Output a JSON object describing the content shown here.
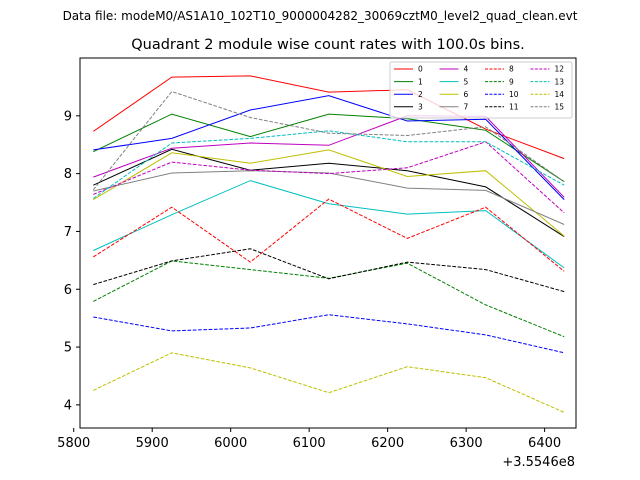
{
  "chart_data": {
    "type": "line",
    "suptitle": "Data file: modeM0/AS1A10_102T10_9000004282_30069cztM0_level2_quad_clean.evt",
    "title": "Quadrant 2 module wise count rates with 100.0s bins.",
    "xlabel": "",
    "ylabel": "",
    "x_offset_label": "+3.5546e8",
    "x": [
      5825,
      5925,
      6025,
      6125,
      6225,
      6325,
      6425
    ],
    "xlim": [
      5808,
      6440
    ],
    "ylim": [
      3.6,
      10.0
    ],
    "xticks": [
      5800,
      5900,
      6000,
      6100,
      6200,
      6300,
      6400
    ],
    "xtick_labels": [
      "5800",
      "5900",
      "6000",
      "6100",
      "6200",
      "6300",
      "6400"
    ],
    "yticks": [
      4,
      5,
      6,
      7,
      8,
      9
    ],
    "ytick_labels": [
      "4",
      "5",
      "6",
      "7",
      "8",
      "9"
    ],
    "grid": false,
    "legend_position": "top-right",
    "series": [
      {
        "name": "0",
        "color": "#ff0000",
        "dash": "solid",
        "values": [
          8.73,
          9.67,
          9.69,
          9.41,
          9.45,
          8.77,
          8.26
        ]
      },
      {
        "name": "1",
        "color": "#008000",
        "dash": "solid",
        "values": [
          8.38,
          9.03,
          8.64,
          9.03,
          8.95,
          8.75,
          7.86
        ]
      },
      {
        "name": "2",
        "color": "#0000ff",
        "dash": "solid",
        "values": [
          8.41,
          8.61,
          9.1,
          9.35,
          8.91,
          8.94,
          7.55
        ]
      },
      {
        "name": "3",
        "color": "#000000",
        "dash": "solid",
        "values": [
          7.8,
          8.42,
          8.06,
          8.18,
          8.05,
          7.77,
          6.91
        ]
      },
      {
        "name": "4",
        "color": "#bf00bf",
        "dash": "solid",
        "values": [
          7.94,
          8.44,
          8.53,
          8.49,
          9.0,
          8.99,
          7.59
        ]
      },
      {
        "name": "5",
        "color": "#00bfbf",
        "dash": "solid",
        "values": [
          6.67,
          7.29,
          7.88,
          7.48,
          7.3,
          7.36,
          6.37
        ]
      },
      {
        "name": "6",
        "color": "#bfbf00",
        "dash": "solid",
        "values": [
          7.55,
          8.36,
          8.18,
          8.41,
          7.95,
          8.05,
          6.92
        ]
      },
      {
        "name": "7",
        "color": "#808080",
        "dash": "solid",
        "values": [
          7.7,
          8.01,
          8.05,
          8.01,
          7.75,
          7.71,
          7.12
        ]
      },
      {
        "name": "8",
        "color": "#ff0000",
        "dash": "dashed",
        "values": [
          6.56,
          7.42,
          6.47,
          7.56,
          6.88,
          7.42,
          6.31
        ]
      },
      {
        "name": "9",
        "color": "#008000",
        "dash": "dashed",
        "values": [
          5.79,
          6.49,
          6.34,
          6.19,
          6.45,
          5.73,
          5.18
        ]
      },
      {
        "name": "10",
        "color": "#0000ff",
        "dash": "dashed",
        "values": [
          5.52,
          5.28,
          5.33,
          5.56,
          5.4,
          5.21,
          4.9
        ]
      },
      {
        "name": "11",
        "color": "#000000",
        "dash": "dashed",
        "values": [
          6.08,
          6.49,
          6.7,
          6.18,
          6.47,
          6.34,
          5.96
        ]
      },
      {
        "name": "12",
        "color": "#bf00bf",
        "dash": "dashed",
        "values": [
          7.64,
          8.2,
          8.06,
          8.0,
          8.1,
          8.55,
          7.32
        ]
      },
      {
        "name": "13",
        "color": "#00bfbf",
        "dash": "dashed",
        "values": [
          7.57,
          8.53,
          8.61,
          8.74,
          8.55,
          8.55,
          7.8
        ]
      },
      {
        "name": "14",
        "color": "#bfbf00",
        "dash": "dashed",
        "values": [
          4.25,
          4.9,
          4.64,
          4.21,
          4.66,
          4.47,
          3.87
        ]
      },
      {
        "name": "15",
        "color": "#808080",
        "dash": "dashed",
        "values": [
          7.72,
          9.42,
          8.97,
          8.7,
          8.66,
          8.81,
          7.86
        ]
      }
    ]
  }
}
